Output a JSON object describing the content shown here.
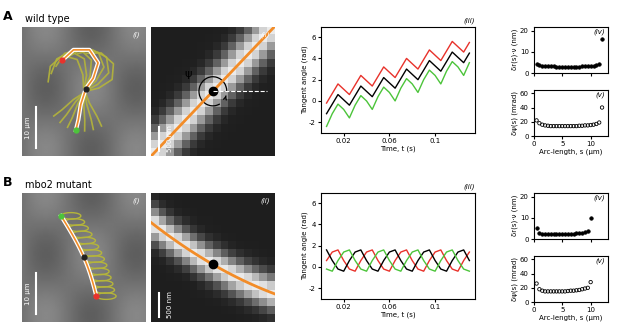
{
  "rows": [
    {
      "letter": "A",
      "title": "wild type",
      "images": [
        {
          "annotation": "(i)",
          "scale_bar": "10 μm"
        },
        {
          "annotation": "(ii)",
          "scale_bar": "500 nm",
          "symbol": "ψ"
        }
      ]
    },
    {
      "letter": "B",
      "title": "mbo2 mutant",
      "images": [
        {
          "annotation": "(i)",
          "scale_bar": "10 μm"
        },
        {
          "annotation": "(ii)",
          "scale_bar": "500 nm"
        }
      ]
    }
  ],
  "chart_data": [
    {
      "type": "line",
      "annotation": "(iii)",
      "x_label": "Time, t (s)",
      "y_label": "Tangent angle (rad)",
      "x": [
        0.005,
        0.01,
        0.015,
        0.02,
        0.025,
        0.03,
        0.035,
        0.04,
        0.045,
        0.05,
        0.055,
        0.06,
        0.065,
        0.07,
        0.075,
        0.08,
        0.085,
        0.09,
        0.095,
        0.1,
        0.105,
        0.11,
        0.115,
        0.12,
        0.125,
        0.13
      ],
      "series": [
        {
          "color": "#e8322b",
          "values": [
            -0.2,
            0.7,
            1.6,
            1.1,
            0.6,
            1.5,
            2.4,
            1.9,
            1.4,
            2.3,
            3.2,
            2.7,
            2.2,
            3.1,
            4.0,
            3.5,
            3.0,
            3.9,
            4.8,
            4.3,
            3.8,
            4.7,
            5.6,
            5.1,
            4.6,
            5.5
          ]
        },
        {
          "color": "#000000",
          "values": [
            -1.2,
            -0.3,
            0.6,
            0.1,
            -0.4,
            0.5,
            1.4,
            0.9,
            0.4,
            1.3,
            2.2,
            1.7,
            1.2,
            2.1,
            3.0,
            2.5,
            2.0,
            2.9,
            3.8,
            3.3,
            2.8,
            3.7,
            4.6,
            4.1,
            3.6,
            4.5
          ]
        },
        {
          "color": "#4cc43a",
          "values": [
            -2.4,
            -1.2,
            -0.3,
            -0.8,
            -1.6,
            -0.4,
            0.5,
            0.0,
            -0.8,
            0.4,
            1.3,
            0.8,
            0.0,
            1.2,
            2.1,
            1.6,
            0.8,
            2.0,
            2.9,
            2.4,
            1.6,
            2.8,
            3.7,
            3.2,
            2.4,
            3.6
          ]
        }
      ],
      "xlim": [
        0,
        0.135
      ],
      "xticks": [
        0.02,
        0.06,
        0.1
      ],
      "ylim": [
        -3,
        7
      ],
      "yticks": [
        -2,
        0,
        2,
        4,
        6
      ]
    },
    {
      "type": "scatter",
      "annotation": "(iv)",
      "y_label": "δr(s)·ν (nm)",
      "x": [
        0.5,
        1,
        1.5,
        2,
        2.5,
        3,
        3.5,
        4,
        4.5,
        5,
        5.5,
        6,
        6.5,
        7,
        7.5,
        8,
        8.5,
        9,
        9.5,
        10,
        10.5,
        11,
        11.5,
        12
      ],
      "values": [
        4.5,
        3.8,
        3.5,
        3.3,
        3.2,
        3.1,
        3.1,
        3.0,
        3.0,
        3.0,
        3.0,
        3.0,
        3.0,
        3.0,
        3.0,
        3.0,
        3.1,
        3.1,
        3.2,
        3.3,
        3.4,
        3.6,
        4.2,
        16
      ],
      "color": "#000000",
      "marker": "filled",
      "tick_labels": "y",
      "xlim": [
        0,
        13
      ],
      "xticks": [
        0,
        5,
        10
      ],
      "ylim": [
        0,
        22
      ],
      "yticks": [
        0,
        10,
        20
      ]
    },
    {
      "type": "scatter",
      "annotation": "(v)",
      "x_label": "Arc-length, s (μm)",
      "y_label": "δψ(s) (mrad)",
      "x": [
        0.5,
        1,
        1.5,
        2,
        2.5,
        3,
        3.5,
        4,
        4.5,
        5,
        5.5,
        6,
        6.5,
        7,
        7.5,
        8,
        8.5,
        9,
        9.5,
        10,
        10.5,
        11,
        11.5,
        12
      ],
      "values": [
        22,
        18,
        16,
        15,
        14.5,
        14,
        14,
        14,
        14,
        14,
        14,
        14,
        14,
        14,
        14,
        14.5,
        14.5,
        15,
        15,
        15.5,
        16,
        17,
        19,
        40
      ],
      "color": "#000000",
      "marker": "open",
      "xlim": [
        0,
        13
      ],
      "xticks": [
        0,
        5,
        10
      ],
      "ylim": [
        0,
        65
      ],
      "yticks": [
        0,
        20,
        40,
        60
      ]
    },
    {
      "type": "line",
      "annotation": "(iii)",
      "x_label": "Time, t (s)",
      "y_label": "Tangent angle (rad)",
      "x": [
        0.005,
        0.01,
        0.015,
        0.02,
        0.025,
        0.03,
        0.035,
        0.04,
        0.045,
        0.05,
        0.055,
        0.06,
        0.065,
        0.07,
        0.075,
        0.08,
        0.085,
        0.09,
        0.095,
        0.1,
        0.105,
        0.11,
        0.115,
        0.12,
        0.125,
        0.13
      ],
      "series": [
        {
          "color": "#e8322b",
          "values": [
            0.6,
            1.4,
            1.6,
            0.6,
            -0.2,
            -0.4,
            0.6,
            1.4,
            1.6,
            0.6,
            -0.2,
            -0.4,
            0.6,
            1.4,
            1.6,
            0.6,
            -0.2,
            -0.4,
            0.6,
            1.4,
            1.6,
            0.6,
            -0.2,
            -0.4,
            0.6,
            1.4
          ]
        },
        {
          "color": "#000000",
          "values": [
            1.6,
            0.6,
            -0.2,
            -0.4,
            0.6,
            1.4,
            1.6,
            0.6,
            -0.2,
            -0.4,
            0.6,
            1.4,
            1.6,
            0.6,
            -0.2,
            -0.4,
            0.6,
            1.4,
            1.6,
            0.6,
            -0.2,
            -0.4,
            0.6,
            1.4,
            1.6,
            0.6
          ]
        },
        {
          "color": "#4cc43a",
          "values": [
            -0.2,
            -0.4,
            0.6,
            1.4,
            1.6,
            0.6,
            -0.2,
            -0.4,
            0.6,
            1.4,
            1.6,
            0.6,
            -0.2,
            -0.4,
            0.6,
            1.4,
            1.6,
            0.6,
            -0.2,
            -0.4,
            0.6,
            1.4,
            1.6,
            0.6,
            -0.2,
            -0.4
          ]
        }
      ],
      "xlim": [
        0,
        0.135
      ],
      "xticks": [
        0.02,
        0.06,
        0.1
      ],
      "ylim": [
        -3,
        7
      ],
      "yticks": [
        -2,
        0,
        2,
        4,
        6
      ]
    },
    {
      "type": "scatter",
      "annotation": "(iv)",
      "y_label": "δr(s)·ν (nm)",
      "x": [
        0.5,
        1,
        1.5,
        2,
        2.5,
        3,
        3.5,
        4,
        4.5,
        5,
        5.5,
        6,
        6.5,
        7,
        7.5,
        8,
        8.5,
        9,
        9.5,
        10
      ],
      "values": [
        5,
        3,
        2.5,
        2.3,
        2.2,
        2.2,
        2.2,
        2.2,
        2.2,
        2.3,
        2.3,
        2.4,
        2.5,
        2.6,
        2.7,
        2.8,
        3.0,
        3.2,
        3.8,
        10
      ],
      "color": "#000000",
      "marker": "filled",
      "tick_labels": "y",
      "xlim": [
        0,
        13
      ],
      "xticks": [
        0,
        5,
        10
      ],
      "ylim": [
        0,
        22
      ],
      "yticks": [
        0,
        10,
        20
      ]
    },
    {
      "type": "scatter",
      "annotation": "(v)",
      "x_label": "Arc-length, s (μm)",
      "y_label": "δψ(s) (mrad)",
      "x": [
        0.5,
        1,
        1.5,
        2,
        2.5,
        3,
        3.5,
        4,
        4.5,
        5,
        5.5,
        6,
        6.5,
        7,
        7.5,
        8,
        8.5,
        9,
        9.5,
        10
      ],
      "values": [
        26,
        18,
        16,
        15,
        15,
        15,
        15,
        15,
        15,
        15,
        15,
        15.5,
        16,
        16,
        16.5,
        17,
        18,
        19,
        20,
        28
      ],
      "color": "#000000",
      "marker": "open",
      "xlim": [
        0,
        13
      ],
      "xticks": [
        0,
        5,
        10
      ],
      "ylim": [
        0,
        65
      ],
      "yticks": [
        0,
        20,
        40,
        60
      ]
    }
  ]
}
